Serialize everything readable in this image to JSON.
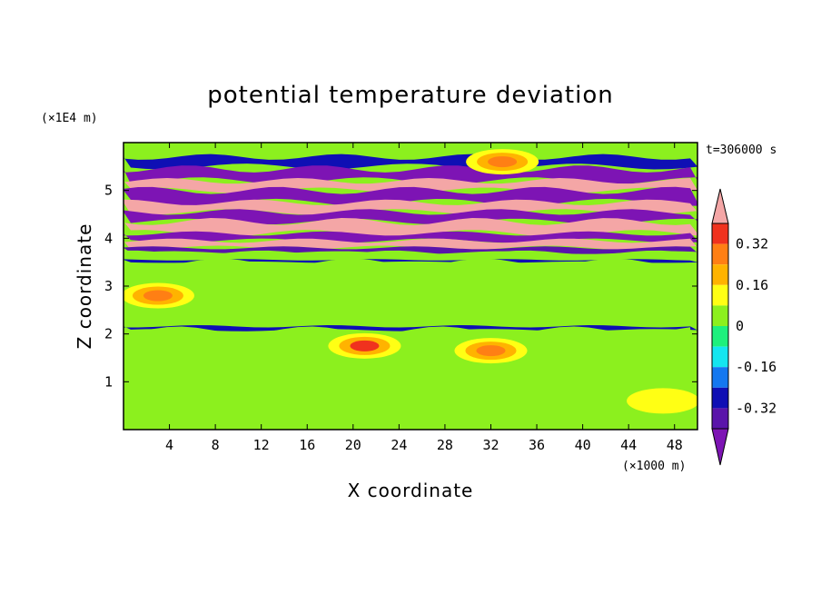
{
  "chart_data": {
    "type": "heatmap",
    "title": "potential temperature deviation",
    "xlabel": "X coordinate",
    "ylabel": "Z coordinate",
    "x_unit_label": "(×1000 m)",
    "y_unit_label": "(×1E4 m)",
    "time_label": "t=306000 s",
    "xlim": [
      0,
      50
    ],
    "ylim": [
      0,
      6
    ],
    "x_ticks": [
      4,
      8,
      12,
      16,
      20,
      24,
      28,
      32,
      36,
      40,
      44,
      48
    ],
    "y_ticks": [
      1,
      2,
      3,
      4,
      5
    ],
    "colorbar": {
      "levels": [
        -0.4,
        -0.32,
        -0.24,
        -0.16,
        -0.08,
        0,
        0.08,
        0.16,
        0.24,
        0.32,
        0.4
      ],
      "tick_labels": [
        "0.32",
        "0.16",
        "0",
        "-0.16",
        "-0.32"
      ],
      "tick_values": [
        0.32,
        0.16,
        0,
        -0.16,
        -0.32
      ],
      "colors_top_to_bottom": [
        "#f4a6a6",
        "#f0321e",
        "#ff7f14",
        "#ffb300",
        "#ffff14",
        "#8cf01e",
        "#1ef07d",
        "#14e6f0",
        "#1478f0",
        "#0f0fb4",
        "#5a14aa",
        "#7d14b4"
      ],
      "extend": "both"
    },
    "bands": [
      {
        "z": [
          5.7,
          6.0
        ],
        "value": 0.0
      },
      {
        "z": [
          5.5,
          5.7
        ],
        "value": -0.25
      },
      {
        "z": [
          5.2,
          5.45
        ],
        "value": -0.4
      },
      {
        "z": [
          5.0,
          5.2
        ],
        "value": 0.42
      },
      {
        "z": [
          4.75,
          5.0
        ],
        "value": -0.42
      },
      {
        "z": [
          4.55,
          4.75
        ],
        "value": 0.42
      },
      {
        "z": [
          4.35,
          4.55
        ],
        "value": -0.42
      },
      {
        "z": [
          4.1,
          4.35
        ],
        "value": 0.42
      },
      {
        "z": [
          3.95,
          4.1
        ],
        "value": -0.42
      },
      {
        "z": [
          3.8,
          3.95
        ],
        "value": 0.42
      },
      {
        "z": [
          3.7,
          3.8
        ],
        "value": -0.36
      },
      {
        "z": [
          3.55,
          3.7
        ],
        "value": 0.06
      },
      {
        "z": [
          3.5,
          3.55
        ],
        "value": -0.3
      },
      {
        "z": [
          2.2,
          3.5
        ],
        "value": 0.04
      },
      {
        "z": [
          2.08,
          2.16
        ],
        "value": -0.3
      },
      {
        "z": [
          0.0,
          2.08
        ],
        "value": 0.02
      }
    ],
    "features": [
      {
        "x": 33,
        "z": 5.6,
        "value": 0.3
      },
      {
        "x": 21,
        "z": 1.75,
        "value": 0.35
      },
      {
        "x": 32,
        "z": 1.65,
        "value": 0.3
      },
      {
        "x": 47,
        "z": 0.6,
        "value": 0.15
      },
      {
        "x": 3,
        "z": 2.8,
        "value": 0.3
      }
    ]
  }
}
